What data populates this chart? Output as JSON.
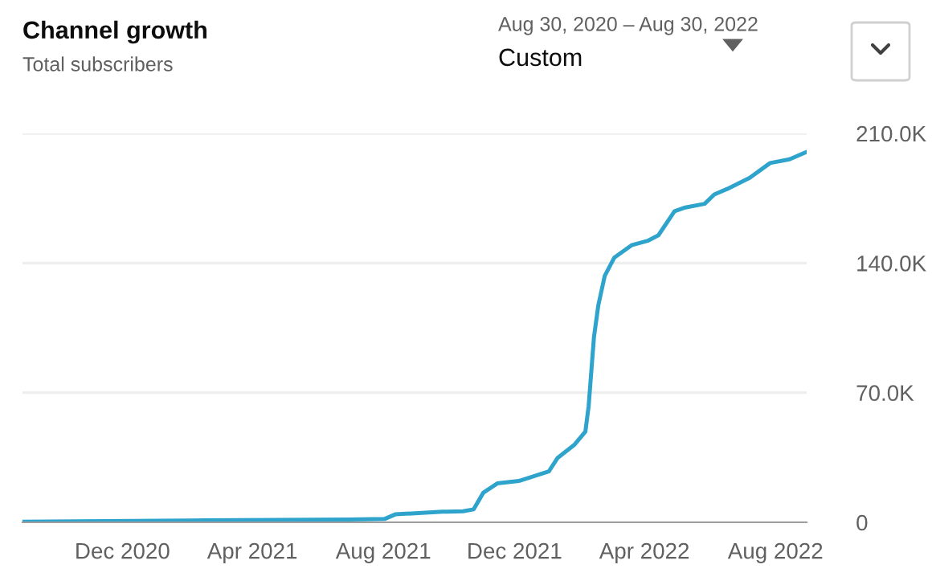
{
  "chart_data": {
    "type": "line",
    "title": "Channel growth",
    "subtitle": "Total subscribers",
    "annotations": [
      "Aug 30, 2020 – Aug 30, 2022",
      "Custom"
    ],
    "x": [
      "2020-08-30",
      "2021-02-01",
      "2021-07-01",
      "2021-08-02",
      "2021-08-12",
      "2021-09-25",
      "2021-09-29",
      "2021-10-14",
      "2021-10-24",
      "2021-11-02",
      "2021-11-15",
      "2021-12-05",
      "2022-01-02",
      "2022-01-10",
      "2022-01-26",
      "2022-02-05",
      "2022-02-08",
      "2022-02-13",
      "2022-02-17",
      "2022-02-23",
      "2022-03-04",
      "2022-03-20",
      "2022-04-04",
      "2022-04-14",
      "2022-04-29",
      "2022-05-09",
      "2022-05-27",
      "2022-06-05",
      "2022-06-17",
      "2022-07-08",
      "2022-07-27",
      "2022-08-14",
      "2022-08-30"
    ],
    "series": [
      {
        "color": "#2ea3cc",
        "values": [
          300,
          1000,
          1500,
          1800,
          4300,
          5800,
          5800,
          6000,
          7000,
          16000,
          21000,
          22300,
          27500,
          34700,
          42000,
          49000,
          62500,
          100000,
          117000,
          133000,
          143000,
          149600,
          152000,
          155000,
          168000,
          170000,
          172000,
          177000,
          180000,
          186000,
          194000,
          196000,
          200000
        ]
      }
    ],
    "xlim": [
      "2020-08-30",
      "2022-08-30"
    ],
    "xticks": [
      {
        "value": "2020-12-01",
        "label": "Dec 2020"
      },
      {
        "value": "2021-04-01",
        "label": "Apr 2021"
      },
      {
        "value": "2021-08-01",
        "label": "Aug 2021"
      },
      {
        "value": "2021-12-01",
        "label": "Dec 2021"
      },
      {
        "value": "2022-04-01",
        "label": "Apr 2022"
      },
      {
        "value": "2022-08-01",
        "label": "Aug 2022"
      }
    ],
    "ylim": [
      0,
      210000
    ],
    "yticks": [
      {
        "value": 0,
        "label": "0"
      },
      {
        "value": 70000,
        "label": "70.0K"
      },
      {
        "value": 140000,
        "label": "140.0K"
      },
      {
        "value": 210000,
        "label": "210.0K"
      }
    ],
    "grid": "y",
    "legend": false,
    "marker": "none",
    "line_style": "solid"
  }
}
